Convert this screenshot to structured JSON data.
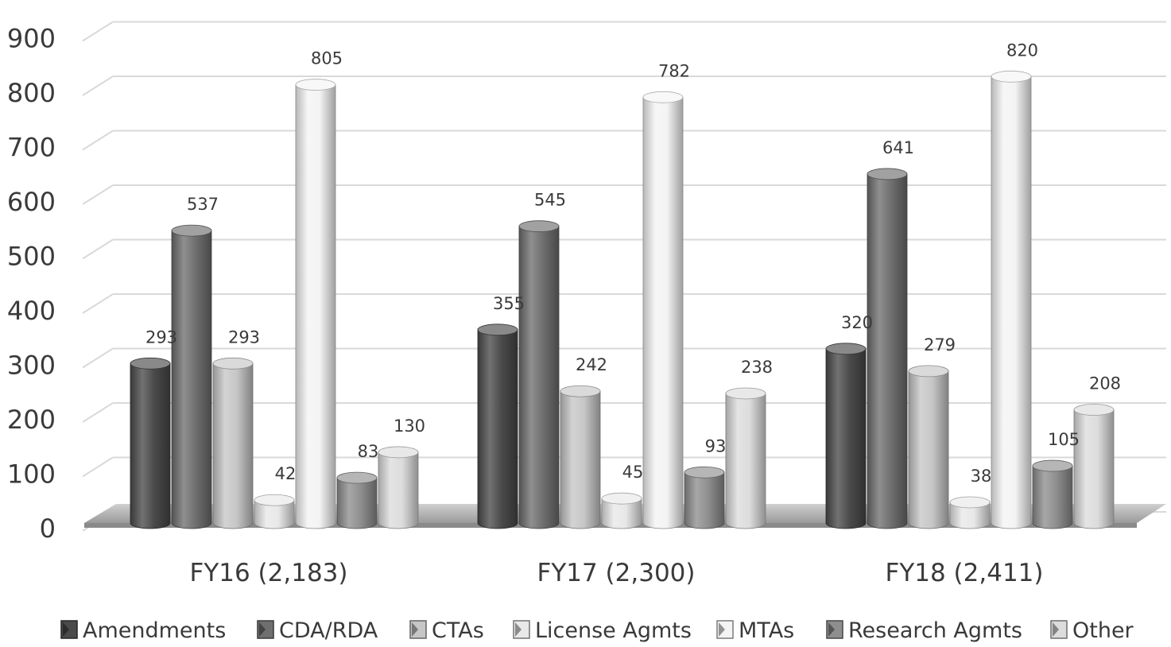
{
  "chart_data": {
    "type": "bar",
    "title": "",
    "xlabel": "",
    "ylabel": "",
    "ylim": [
      0,
      900
    ],
    "yticks": [
      0,
      100,
      200,
      300,
      400,
      500,
      600,
      700,
      800,
      900
    ],
    "ytick_labels": [
      "0",
      "100",
      "200",
      "300",
      "400",
      "500",
      "600",
      "700",
      "800",
      "900"
    ],
    "grid": true,
    "style": "3d-cylinder",
    "legend_position": "bottom",
    "categories": [
      "FY16 (2,183)",
      "FY17 (2,300)",
      "FY18 (2,411)"
    ],
    "series": [
      {
        "name": "Amendments",
        "values": [
          293,
          355,
          320
        ],
        "labels": [
          "293",
          "355",
          "320"
        ],
        "color": "#4a4a4a"
      },
      {
        "name": "CDA/RDA",
        "values": [
          537,
          545,
          641
        ],
        "labels": [
          "537",
          "545",
          "641"
        ],
        "color": "#6f6f6f"
      },
      {
        "name": "CTAs",
        "values": [
          293,
          242,
          279
        ],
        "labels": [
          "293",
          "242",
          "279"
        ],
        "color": "#c6c6c6"
      },
      {
        "name": "License Agmts",
        "values": [
          42,
          45,
          38
        ],
        "labels": [
          "42",
          "45",
          "38"
        ],
        "color": "#e8e8e8"
      },
      {
        "name": "MTAs",
        "values": [
          805,
          782,
          820
        ],
        "labels": [
          "805",
          "782",
          "820"
        ],
        "color": "#f4f4f4"
      },
      {
        "name": "Research Agmts",
        "values": [
          83,
          93,
          105
        ],
        "labels": [
          "83",
          "93",
          "105"
        ],
        "color": "#8e8e8e"
      },
      {
        "name": "Other",
        "values": [
          130,
          238,
          208
        ],
        "labels": [
          "130",
          "238",
          "208"
        ],
        "color": "#dcdcdc"
      }
    ]
  }
}
